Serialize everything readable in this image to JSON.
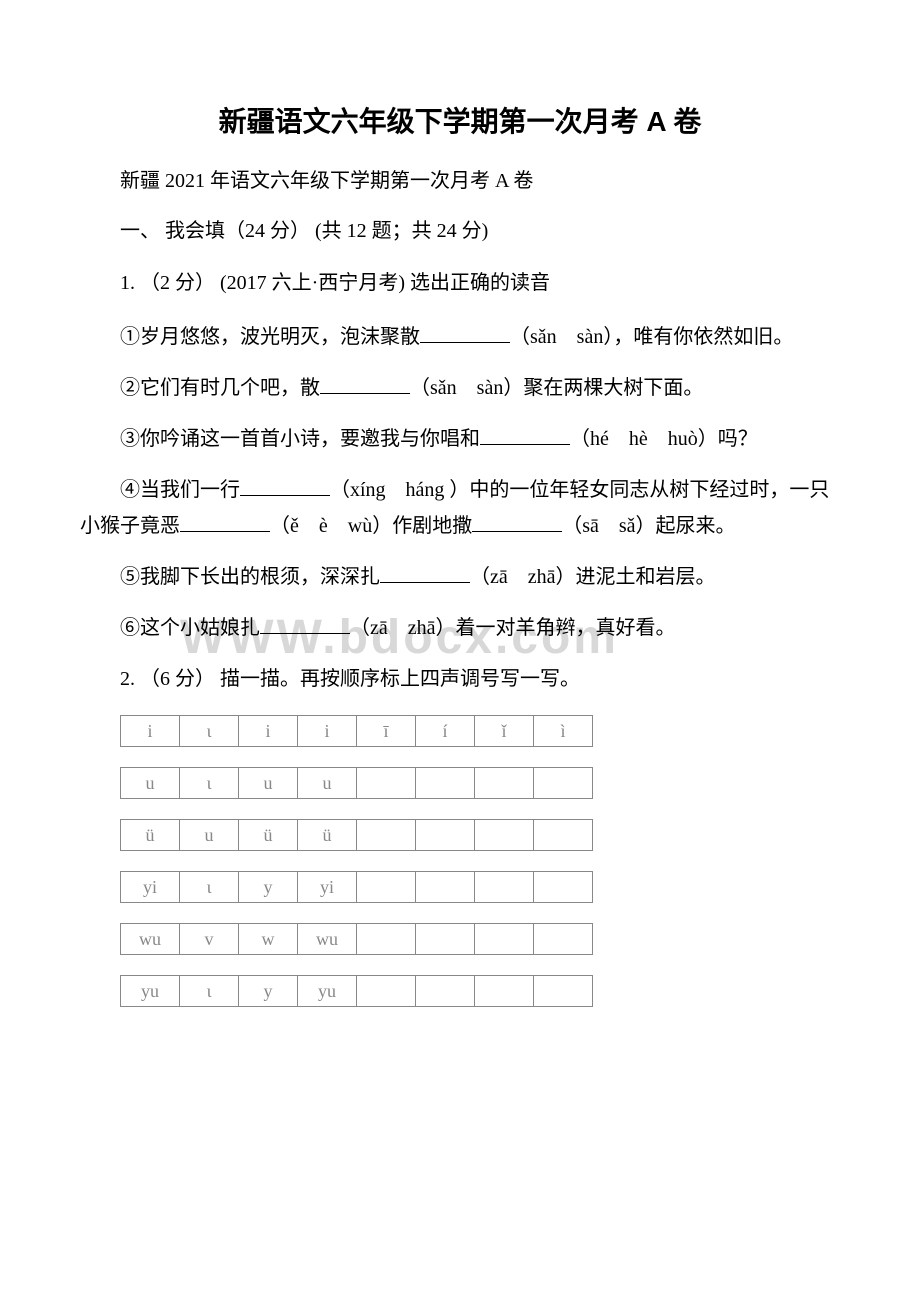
{
  "title": "新疆语文六年级下学期第一次月考 A 卷",
  "subtitle": "新疆 2021 年语文六年级下学期第一次月考 A 卷",
  "section1": {
    "header": "一、 我会填（24 分） (共 12 题；共 24 分)",
    "q1": {
      "intro": "1. （2 分） (2017 六上·西宁月考) 选出正确的读音",
      "item1_pre": "①岁月悠悠，波光明灭，泡沫聚散",
      "item1_post": "（sǎn　sàn），唯有你依然如旧。",
      "item2_pre": "②它们有时几个吧，散",
      "item2_post": "（sǎn　sàn）聚在两棵大树下面。",
      "item3_pre": "③你吟诵这一首首小诗，要邀我与你唱和",
      "item3_post": "（hé　hè　huò）吗？",
      "item4_pre": "④当我们一行",
      "item4_mid1": "（xíng　háng ）中的一位年轻女同志从树下经过时，一只小猴子竟恶",
      "item4_mid2": "（ě　è　wù）作剧地撒",
      "item4_post": "（sā　sǎ）起尿来。",
      "item5_pre": "⑤我脚下长出的根须，深深扎",
      "item5_post": "（zā　zhā）进泥土和岩层。",
      "item6_pre": "⑥这个小姑娘扎",
      "item6_post": "（zā　zhā）着一对羊角辫，真好看。"
    },
    "q2": {
      "intro": "2. （6 分） 描一描。再按顺序标上四声调号写一写。",
      "rows": [
        [
          "i",
          "ι",
          "i",
          "i",
          "ī",
          "í",
          "ǐ",
          "ì"
        ],
        [
          "u",
          "ι",
          "u",
          "u",
          "",
          "",
          "",
          ""
        ],
        [
          "ü",
          "u",
          "ü",
          "ü",
          "",
          "",
          "",
          ""
        ],
        [
          "yi",
          "ι",
          "y",
          "yi",
          "",
          "",
          "",
          ""
        ],
        [
          "wu",
          "v",
          "w",
          "wu",
          "",
          "",
          "",
          ""
        ],
        [
          "yu",
          "ι",
          "y",
          "yu",
          "",
          "",
          "",
          ""
        ]
      ]
    }
  },
  "watermark": "WWW.bdocx.com"
}
